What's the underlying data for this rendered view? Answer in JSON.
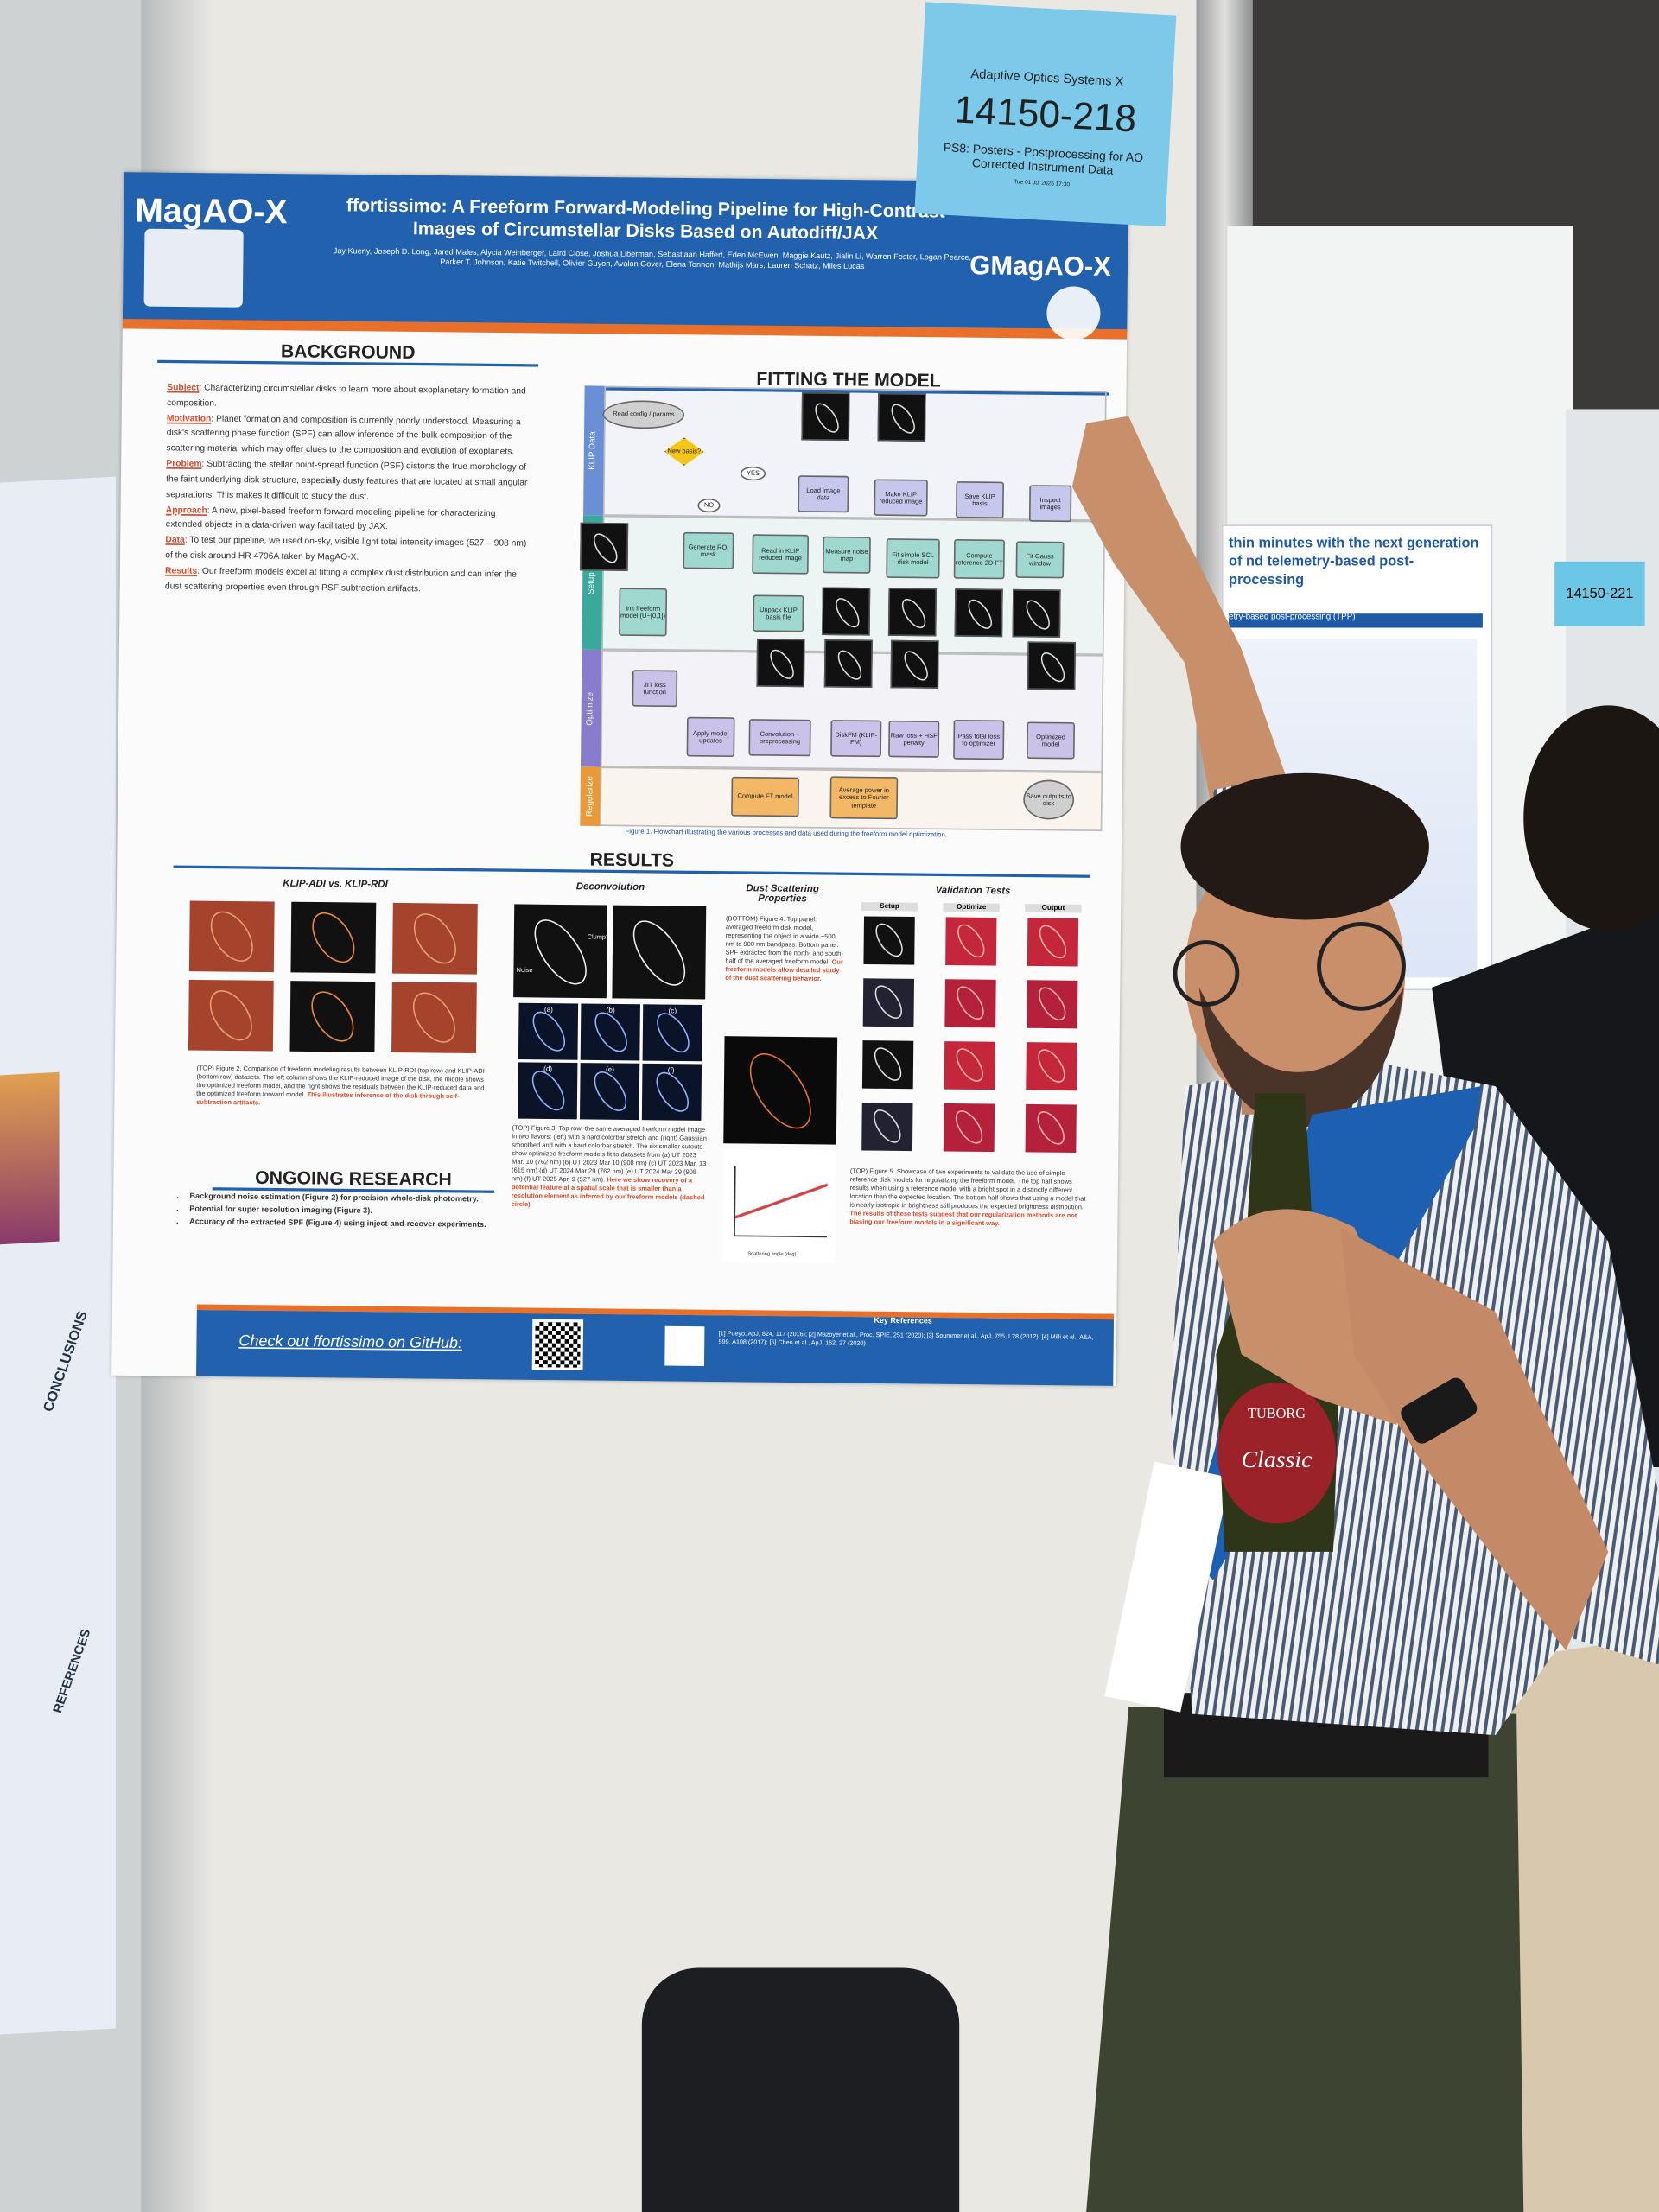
{
  "sign": {
    "conference": "Adaptive Optics Systems X",
    "number": "14150-218",
    "session": "PS8: Posters - Postprocessing for AO Corrected Instrument Data",
    "date": "Tue 01 Jul 2025 17:30"
  },
  "poster": {
    "logo_left": "MagAO-X",
    "logo_right": "GMagAO-X",
    "title": "ffortissimo: A Freeform Forward-Modeling Pipeline for High-Contrast Images of Circumstellar Disks Based on Autodiff/JAX",
    "authors": "Jay Kueny, Joseph D. Long, Jared Males, Alycia Weinberger, Laird Close, Joshua Liberman, Sebastiaan Haffert, Eden McEwen, Maggie Kautz, Jialin Li, Warren Foster, Logan Pearce, Parker T. Johnson, Katie Twitchell, Olivier Guyon, Avalon Gover, Elena Tonnon, Mathijs Mars, Lauren Schatz, Miles Lucas",
    "background": {
      "heading": "BACKGROUND",
      "items": [
        {
          "label": "Subject",
          "text": ": Characterizing circumstellar disks to learn more about exoplanetary formation and composition."
        },
        {
          "label": "Motivation",
          "text": ": Planet formation and composition is currently poorly understood. Measuring a disk's scattering phase function (SPF) can allow inference of the bulk composition of the scattering material which may offer clues to the composition and evolution of exoplanets."
        },
        {
          "label": "Problem",
          "text": ": Subtracting the stellar point-spread function (PSF) distorts the true morphology of the faint underlying disk structure, especially dusty features that are located at small angular separations. This makes it difficult to study the dust."
        },
        {
          "label": "Approach",
          "text": ": A new, pixel-based freeform forward modeling pipeline for characterizing extended objects in a data-driven way facilitated by JAX."
        },
        {
          "label": "Data",
          "text": ": To test our pipeline, we used on-sky, visible light total intensity images (527 – 908 nm) of the disk around HR 4796A taken by MagAO-X."
        },
        {
          "label": "Results",
          "text": ": Our freeform models excel at fitting a complex dust distribution and can infer the dust scattering properties even through PSF subtraction artifacts."
        }
      ]
    },
    "fitting": {
      "heading": "FITTING THE MODEL",
      "lanes": [
        "KLIP Data",
        "Setup",
        "Optimize",
        "Regularize"
      ],
      "nodes": [
        "Read config / params",
        "New basis?",
        "YES",
        "NO",
        "Load image data",
        "Make KLIP reduced image",
        "Save KLIP basis",
        "Inspect images",
        "Generate ROI mask",
        "Read in KLIP reduced image",
        "Measure noise map",
        "Fit simple SCL disk model",
        "Compute reference 2D FT",
        "Fit Gauss window",
        "Init freeform model (U~[0,1])",
        "Unpack KLIP basis file",
        "JIT loss function",
        "Apply model updates",
        "Convolution + preprocessing",
        "DiskFM (KLIP-FM)",
        "Raw loss + HSF penalty",
        "Pass total loss to optimizer",
        "Optimized model",
        "Compute FT model",
        "Average power in excess to Fourier template",
        "Save outputs to disk"
      ],
      "caption": "Figure 1. Flowchart illustrating the various processes and data used during the freeform model optimization."
    },
    "results": {
      "heading": "RESULTS",
      "fig2": {
        "title": "KLIP-ADI vs. KLIP-RDI",
        "caption": "(TOP) Figure 2. Comparison of freeform modeling results between KLIP-RDI (top row) and KLIP-ADI (bottom row) datasets. The left column shows the KLIP-reduced image of the disk, the middle shows the optimized freeform model, and the right shows the residuals between the KLIP-reduced data and the optimized freeform forward model.",
        "highlight": "This illustrates inference of the disk through self-subtraction artifacts."
      },
      "fig3": {
        "title": "Deconvolution",
        "labels": [
          "Noise",
          "Clump?"
        ],
        "cutouts": [
          "(a)",
          "(b)",
          "(c)",
          "(d)",
          "(e)",
          "(f)"
        ],
        "caption": "(TOP) Figure 3. Top row: the same averaged freeform model image in two flavors: (left) with a hard colorbar stretch and (right) Gaussian smoothed and with a hard colorbar stretch. The six smaller cutouts show optimized freeform models fit to datasets from (a) UT 2023 Mar. 10 (762 nm) (b) UT 2023 Mar 10 (908 nm) (c) UT 2023 Mar. 13 (615 nm) (d) UT 2024 Mar 29 (762 nm) (e) UT 2024 Mar 29 (908 nm) (f) UT 2025 Apr. 9 (527 nm).",
        "highlight": "Here we show recovery of a potential feature at a spatial scale that is smaller than a resolution element as inferred by our freeform models (dashed circle)."
      },
      "fig4": {
        "title": "Dust Scattering Properties",
        "caption": "(BOTTOM) Figure 4. Top panel: averaged freeform disk model, representing the object in a wide ~500 nm to 900 nm bandpass. Bottom panel: SPF extracted from the north- and south-half of the averaged freeform model.",
        "highlight": "Our freeform models allow detailed study of the dust scattering behavior.",
        "xlabel": "Scattering angle (deg)"
      },
      "fig5": {
        "title": "Validation Tests",
        "columns": [
          "Setup",
          "Optimize",
          "Output"
        ],
        "caption": "(TOP) Figure 5. Showcase of two experiments to validate the use of simple reference disk models for regularizing the freeform model. The top half shows results when using a reference model with a bright spot in a distinctly different location than the expected location. The bottom half shows that using a model that is nearly isotropic in brightness still produces the expected brightness distribution.",
        "highlight": "The results of these tests suggest that our regularization methods are not biasing our freeform models in a significant way."
      }
    },
    "ongoing": {
      "heading": "ONGOING RESEARCH",
      "items": [
        "Background noise estimation (Figure 2) for precision whole-disk photometry.",
        "Potential for super resolution imaging (Figure 3).",
        "Accuracy of the extracted SPF (Figure 4) using inject-and-recover experiments."
      ]
    },
    "footer": {
      "github": "Check out ffortissimo on GitHub:",
      "refs_heading": "Key References",
      "refs": "[1] Pueyo, ApJ, 824, 117 (2016); [2] Mazoyer et al., Proc. SPIE, 251 (2020); [3] Soummer et al., ApJ, 755, L28 (2012); [4] Milli et al., A&A, 599, A108 (2017); [5] Chen et al., ApJ, 162, 27 (2020)"
    }
  },
  "neighbor_poster": {
    "title": "thin minutes with the next generation of nd telemetry-based post-processing",
    "section": "etry-based post-processing (TPP)",
    "sign": "14150-221"
  },
  "left_poster": {
    "conclusions": "CONCLUSIONS",
    "references": "REFERENCES"
  },
  "bottle": {
    "brand": "TUBORG",
    "label": "Classic"
  }
}
